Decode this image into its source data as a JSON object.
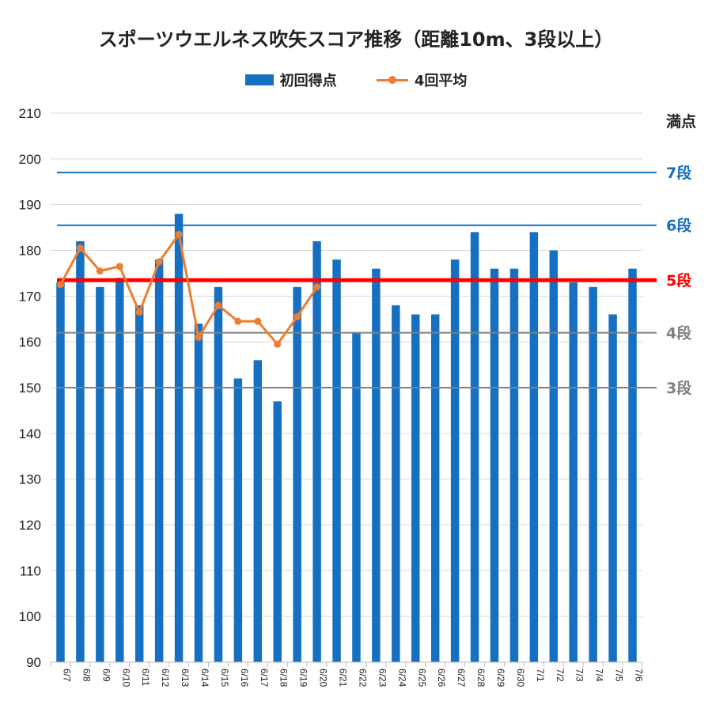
{
  "chart_data": {
    "type": "bar",
    "title": "スポーツウエルネス吹矢スコア推移（距離10m、3段以上）",
    "ylim": [
      90,
      210
    ],
    "yticks": [
      90,
      100,
      110,
      120,
      130,
      140,
      150,
      160,
      170,
      180,
      190,
      200,
      210
    ],
    "grid": true,
    "legend_placement": "top",
    "categories": [
      "6/7",
      "6/8",
      "6/9",
      "6/10",
      "6/11",
      "6/12",
      "6/13",
      "6/14",
      "6/15",
      "6/16",
      "6/17",
      "6/18",
      "6/19",
      "6/20",
      "6/21",
      "6/22",
      "6/23",
      "6/24",
      "6/25",
      "6/26",
      "6/27",
      "6/28",
      "6/29",
      "6/30",
      "7/1",
      "7/2",
      "7/3",
      "7/4",
      "7/5",
      "7/6"
    ],
    "series": [
      {
        "name": "初回得点",
        "type": "bar",
        "color": "#1670c2",
        "values": [
          173,
          182,
          172,
          174,
          168,
          178,
          188,
          164,
          172,
          152,
          156,
          147,
          172,
          182,
          178,
          162,
          176,
          168,
          166,
          166,
          178,
          184,
          176,
          176,
          184,
          180,
          173,
          172,
          166,
          176
        ]
      },
      {
        "name": "4回平均",
        "type": "line",
        "color": "#ed7d31",
        "values": [
          172.5,
          180.5,
          175.5,
          176.5,
          166.5,
          177.5,
          183.5,
          161,
          168,
          164.5,
          164.5,
          159.5,
          165.5,
          172,
          null,
          null,
          null,
          null,
          null,
          null,
          null,
          null,
          null,
          null,
          null,
          null,
          null,
          null,
          null,
          null
        ]
      }
    ],
    "reference_lines": [
      {
        "label": "満点",
        "value": 210,
        "line": false,
        "color": "#222222"
      },
      {
        "label": "7段",
        "value": 197,
        "line": true,
        "color": "#1670c2",
        "width": 2
      },
      {
        "label": "6段",
        "value": 185.5,
        "line": true,
        "color": "#1670c2",
        "width": 2
      },
      {
        "label": "5段",
        "value": 173.5,
        "line": true,
        "color": "#ff0000",
        "width": 5
      },
      {
        "label": "4段",
        "value": 162,
        "line": true,
        "color": "#808080",
        "width": 2
      },
      {
        "label": "3段",
        "value": 150,
        "line": true,
        "color": "#808080",
        "width": 2
      }
    ]
  }
}
